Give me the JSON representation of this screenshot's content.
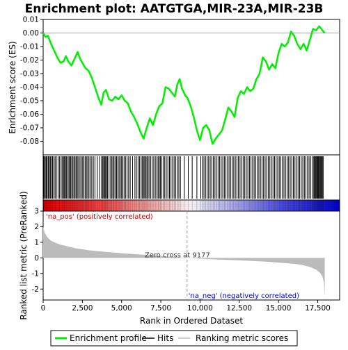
{
  "chart_data": {
    "type": "line",
    "title": "Enrichment plot: AATGTGA,MIR-23A,MIR-23B",
    "xlabel": "Rank in Ordered Dataset",
    "es_panel": {
      "ylabel": "Enrichment score (ES)",
      "ylim": [
        -0.09,
        0.01
      ],
      "yticks": [
        "0.01",
        "0.00",
        "-0.01",
        "-0.02",
        "-0.03",
        "-0.04",
        "-0.05",
        "-0.06",
        "-0.07",
        "-0.08"
      ],
      "series_name": "Enrichment profile",
      "color": "#00ee00",
      "points": [
        [
          0,
          0.0
        ],
        [
          150,
          -0.003
        ],
        [
          300,
          -0.002
        ],
        [
          500,
          -0.008
        ],
        [
          700,
          -0.013
        ],
        [
          900,
          -0.018
        ],
        [
          1100,
          -0.022
        ],
        [
          1300,
          -0.021
        ],
        [
          1450,
          -0.017
        ],
        [
          1600,
          -0.021
        ],
        [
          1800,
          -0.024
        ],
        [
          2000,
          -0.019
        ],
        [
          2200,
          -0.014
        ],
        [
          2350,
          -0.019
        ],
        [
          2500,
          -0.022
        ],
        [
          2700,
          -0.026
        ],
        [
          2900,
          -0.028
        ],
        [
          3100,
          -0.033
        ],
        [
          3300,
          -0.04
        ],
        [
          3500,
          -0.047
        ],
        [
          3700,
          -0.053
        ],
        [
          3850,
          -0.044
        ],
        [
          4000,
          -0.042
        ],
        [
          4200,
          -0.049
        ],
        [
          4400,
          -0.05
        ],
        [
          4600,
          -0.047
        ],
        [
          4800,
          -0.049
        ],
        [
          5000,
          -0.046
        ],
        [
          5200,
          -0.05
        ],
        [
          5400,
          -0.052
        ],
        [
          5600,
          -0.058
        ],
        [
          5800,
          -0.062
        ],
        [
          6000,
          -0.067
        ],
        [
          6200,
          -0.073
        ],
        [
          6400,
          -0.078
        ],
        [
          6600,
          -0.07
        ],
        [
          6800,
          -0.063
        ],
        [
          7000,
          -0.068
        ],
        [
          7200,
          -0.06
        ],
        [
          7400,
          -0.054
        ],
        [
          7600,
          -0.052
        ],
        [
          7800,
          -0.04
        ],
        [
          8000,
          -0.041
        ],
        [
          8200,
          -0.044
        ],
        [
          8400,
          -0.047
        ],
        [
          8550,
          -0.038
        ],
        [
          8700,
          -0.034
        ],
        [
          8850,
          -0.041
        ],
        [
          9050,
          -0.046
        ],
        [
          9200,
          -0.048
        ],
        [
          9400,
          -0.054
        ],
        [
          9600,
          -0.062
        ],
        [
          9800,
          -0.072
        ],
        [
          10000,
          -0.079
        ],
        [
          10200,
          -0.07
        ],
        [
          10400,
          -0.068
        ],
        [
          10600,
          -0.072
        ],
        [
          10800,
          -0.082
        ],
        [
          11000,
          -0.078
        ],
        [
          11200,
          -0.075
        ],
        [
          11400,
          -0.072
        ],
        [
          11600,
          -0.064
        ],
        [
          11800,
          -0.055
        ],
        [
          12000,
          -0.058
        ],
        [
          12200,
          -0.062
        ],
        [
          12400,
          -0.048
        ],
        [
          12600,
          -0.043
        ],
        [
          12800,
          -0.045
        ],
        [
          13000,
          -0.04
        ],
        [
          13200,
          -0.043
        ],
        [
          13400,
          -0.041
        ],
        [
          13600,
          -0.034
        ],
        [
          13800,
          -0.03
        ],
        [
          14000,
          -0.018
        ],
        [
          14200,
          -0.021
        ],
        [
          14400,
          -0.027
        ],
        [
          14600,
          -0.023
        ],
        [
          14800,
          -0.026
        ],
        [
          15000,
          -0.015
        ],
        [
          15200,
          -0.008
        ],
        [
          15400,
          -0.01
        ],
        [
          15600,
          -0.007
        ],
        [
          15800,
          0.001
        ],
        [
          16000,
          -0.002
        ],
        [
          16200,
          -0.008
        ],
        [
          16400,
          -0.012
        ],
        [
          16600,
          -0.008
        ],
        [
          16800,
          -0.013
        ],
        [
          17000,
          -0.005
        ],
        [
          17200,
          0.003
        ],
        [
          17400,
          0.002
        ],
        [
          17600,
          0.005
        ],
        [
          17800,
          0.002
        ],
        [
          17950,
          0.0
        ]
      ]
    },
    "hits_panel": {
      "series_name": "Hits",
      "hit_ranks": [
        30,
        80,
        140,
        200,
        260,
        330,
        400,
        460,
        520,
        600,
        680,
        760,
        840,
        950,
        1050,
        1150,
        1230,
        1300,
        1360,
        1420,
        1480,
        1560,
        1640,
        1700,
        1760,
        1830,
        1900,
        1970,
        2040,
        2110,
        2180,
        2260,
        2350,
        2440,
        2520,
        2600,
        2680,
        2760,
        2840,
        2920,
        3000,
        3100,
        3200,
        3300,
        3450,
        3600,
        3720,
        3800,
        3860,
        3920,
        3980,
        4040,
        4100,
        4200,
        4300,
        4380,
        4450,
        4520,
        4600,
        4680,
        4760,
        4840,
        4920,
        5000,
        5080,
        5160,
        5250,
        5350,
        5450,
        5550,
        5700,
        5850,
        5950,
        6050,
        6150,
        6250,
        6330,
        6400,
        6470,
        6540,
        6610,
        6680,
        6750,
        6850,
        6950,
        7050,
        7150,
        7250,
        7330,
        7400,
        7470,
        7550,
        7650,
        7750,
        7850,
        7950,
        8050,
        8150,
        8250,
        8350,
        8450,
        8550,
        8650,
        8750,
        9000,
        9250,
        9500,
        9800,
        10050,
        10150,
        10250,
        10350,
        10450,
        10550,
        10650,
        10750,
        10850,
        10950,
        11050,
        11150,
        11250,
        11350,
        11450,
        11550,
        11650,
        11750,
        11850,
        11950,
        12050,
        12150,
        12250,
        12350,
        12450,
        12550,
        12650,
        12750,
        12850,
        12950,
        13050,
        13150,
        13250,
        13350,
        13450,
        13550,
        13650,
        13750,
        13850,
        13950,
        14050,
        14150,
        14250,
        14350,
        14450,
        14550,
        14650,
        14750,
        14850,
        14950,
        15050,
        15150,
        15250,
        15350,
        15450,
        15550,
        15650,
        15750,
        15850,
        15950,
        16050,
        16150,
        16250,
        16350,
        16450,
        16550,
        16650,
        16750,
        16850,
        16950,
        17050,
        17150,
        17250,
        17300,
        17350,
        17400,
        17450,
        17500,
        17550,
        17600,
        17650,
        17700,
        17750,
        17800,
        17850
      ]
    },
    "metric_panel": {
      "ylabel": "Ranked list metric (PreRanked)",
      "ylim": [
        -2.7,
        3.0
      ],
      "yticks": [
        "3",
        "2",
        "1",
        "0",
        "-1",
        "-2"
      ],
      "series_name": "Ranking metric scores",
      "points": [
        [
          0,
          2.0
        ],
        [
          30,
          1.85
        ],
        [
          100,
          1.6
        ],
        [
          250,
          1.35
        ],
        [
          500,
          1.1
        ],
        [
          1000,
          0.88
        ],
        [
          2000,
          0.63
        ],
        [
          3000,
          0.48
        ],
        [
          4000,
          0.38
        ],
        [
          5000,
          0.3
        ],
        [
          6000,
          0.23
        ],
        [
          7000,
          0.16
        ],
        [
          8000,
          0.08
        ],
        [
          9177,
          0.0
        ],
        [
          10000,
          -0.05
        ],
        [
          11000,
          -0.1
        ],
        [
          12000,
          -0.14
        ],
        [
          13000,
          -0.18
        ],
        [
          14000,
          -0.23
        ],
        [
          15000,
          -0.3
        ],
        [
          16000,
          -0.38
        ],
        [
          16500,
          -0.45
        ],
        [
          17000,
          -0.58
        ],
        [
          17400,
          -0.75
        ],
        [
          17650,
          -0.95
        ],
        [
          17800,
          -1.2
        ],
        [
          17900,
          -1.6
        ],
        [
          17950,
          -2.55
        ]
      ],
      "zero_cross_rank": 9177,
      "zero_cross_label": "Zero cross at 9177",
      "pos_label": "'na_pos' (positively correlated)",
      "neg_label": "'na_neg' (negatively correlated)"
    },
    "x_axis": {
      "xlim": [
        0,
        18900
      ],
      "xticks": [
        0,
        2500,
        5000,
        7500,
        10000,
        12500,
        15000,
        17500
      ],
      "xtick_labels": [
        "0",
        "2,500",
        "5,000",
        "7,500",
        "10,000",
        "12,500",
        "15,000",
        "17,500"
      ]
    },
    "legend": {
      "placement": "bottom",
      "entries": [
        {
          "label": "Enrichment profile",
          "color": "#00ee00"
        },
        {
          "label": "Hits",
          "color": "#000000"
        },
        {
          "label": "Ranking metric scores",
          "color": "#bbbbbb"
        }
      ]
    }
  }
}
